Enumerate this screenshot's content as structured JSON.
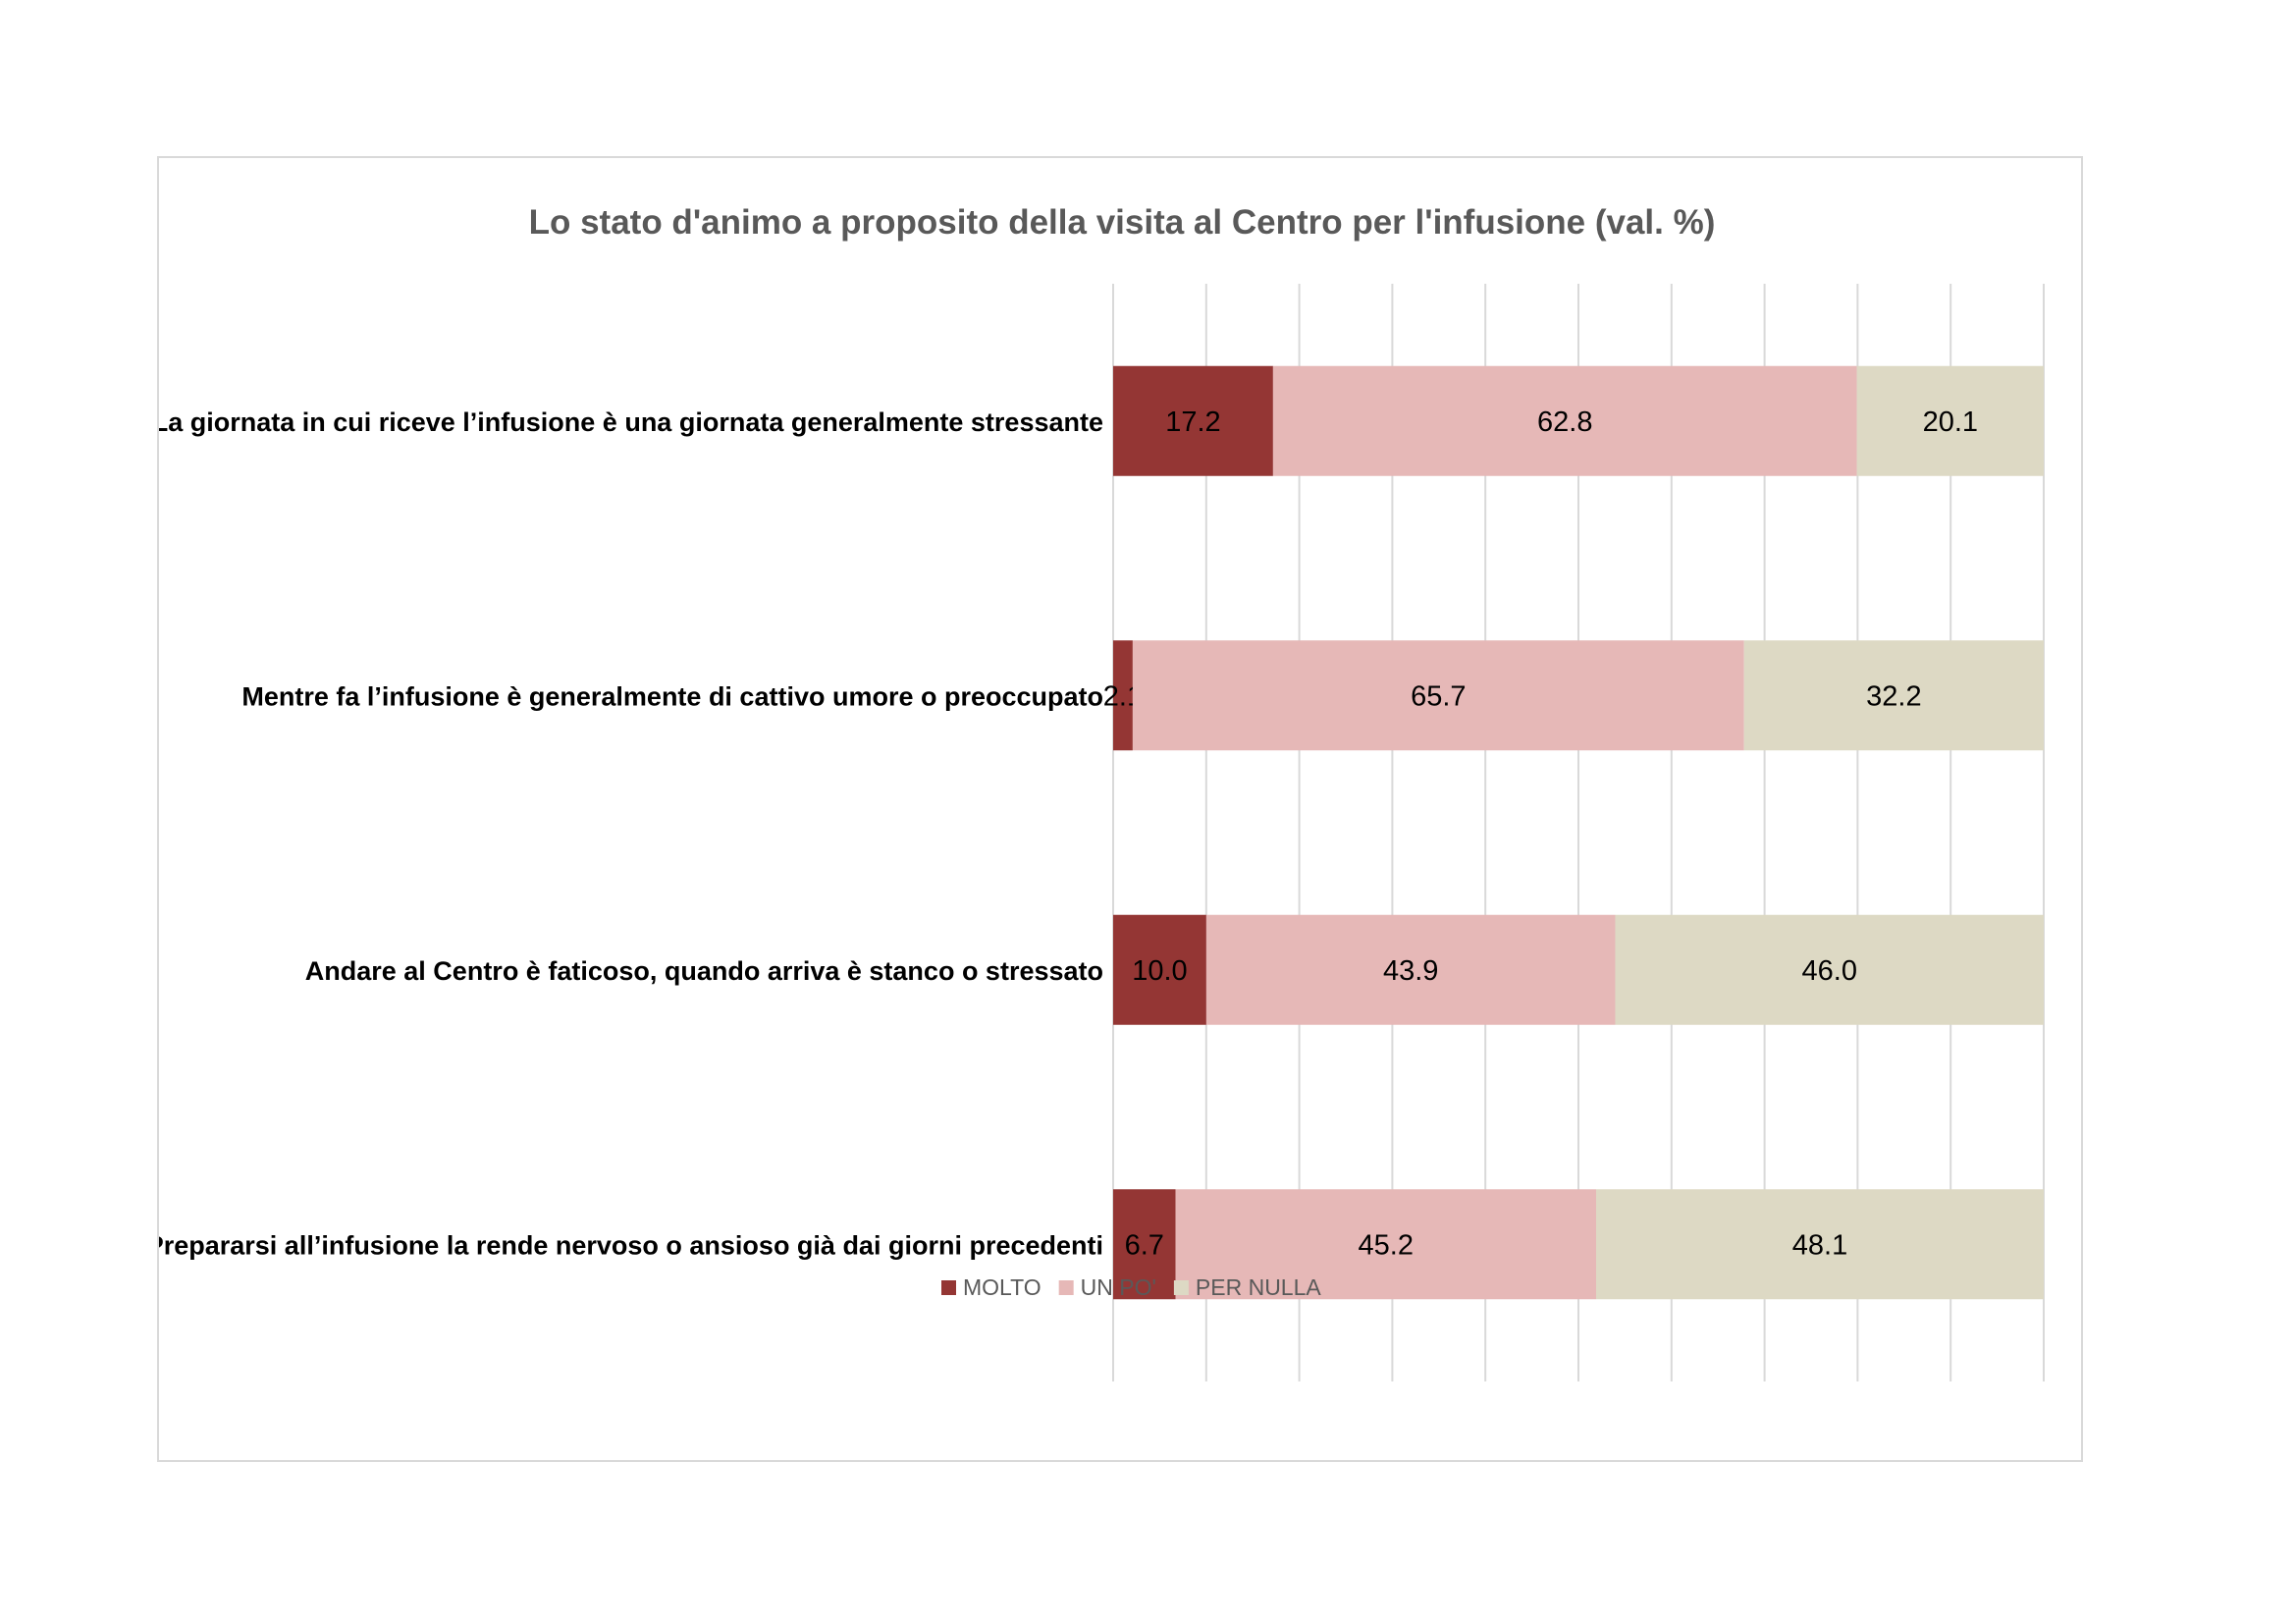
{
  "chart_data": {
    "type": "bar",
    "orientation": "horizontal",
    "stacked": "percent",
    "title": "Lo stato d'animo a proposito della visita al Centro per l'infusione (val. %)",
    "categories": [
      "La giornata in cui riceve l’infusione è una giornata generalmente stressante",
      "Mentre fa l’infusione è generalmente di cattivo umore o preoccupato",
      "Andare al Centro è faticoso, quando arriva è stanco o stressato",
      "Prepararsi all’infusione la rende nervoso o ansioso già dai giorni precedenti"
    ],
    "series": [
      {
        "name": "MOLTO",
        "color": "#943634",
        "values": [
          17.2,
          2.1,
          10.0,
          6.7
        ]
      },
      {
        "name": "UN PO'",
        "color": "#e6b8b7",
        "values": [
          62.8,
          65.7,
          43.9,
          45.2
        ]
      },
      {
        "name": "PER NULLA",
        "color": "#ddd9c4",
        "values": [
          20.1,
          32.2,
          46.0,
          48.1
        ]
      }
    ],
    "xlim": [
      0,
      100
    ],
    "gridlines": true,
    "legend": "bottom",
    "data_labels": true,
    "label_decimals": 1
  }
}
